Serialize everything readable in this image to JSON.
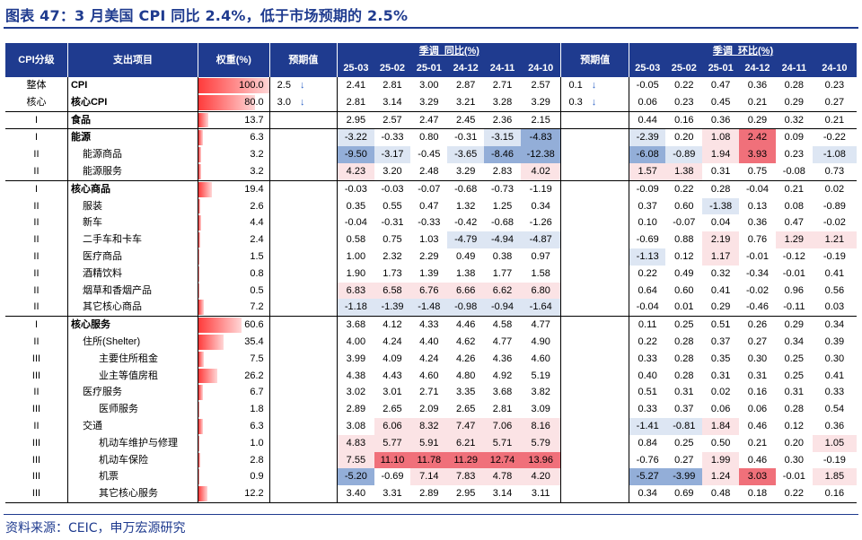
{
  "title": "图表 47：3 月美国 CPI 同比 2.4%，低于市场预期的 2.5%",
  "headers": {
    "level": "CPI分级",
    "item": "支出项目",
    "weight": "权重(%)",
    "forecast": "预期值",
    "yoy_group": "季调_同比(%)",
    "mom_group": "季调_环比(%)",
    "months": [
      "25-03",
      "25-02",
      "25-01",
      "24-12",
      "24-11",
      "24-10"
    ]
  },
  "colors": {
    "header_bg": "#1f3b8f",
    "red_strong": "#f0707a",
    "red_light": "#fbe3e5",
    "blue_strong": "#93aed8",
    "blue_light": "#dde6f3"
  },
  "rows": [
    {
      "level": "整体",
      "item": "CPI",
      "weight": "100.0",
      "fyoy": "2.5",
      "fyoy_arrow": "↓",
      "yoy": [
        "2.41",
        "2.81",
        "3.00",
        "2.87",
        "2.71",
        "2.57"
      ],
      "fmom": "0.1",
      "fmom_arrow": "↓",
      "mom": [
        "-0.05",
        "0.22",
        "0.47",
        "0.36",
        "0.28",
        "0.23"
      ]
    },
    {
      "level": "核心",
      "item": "核心CPI",
      "weight": "80.0",
      "fyoy": "3.0",
      "fyoy_arrow": "↓",
      "yoy": [
        "2.81",
        "3.14",
        "3.29",
        "3.21",
        "3.28",
        "3.29"
      ],
      "fmom": "0.3",
      "fmom_arrow": "↓",
      "mom": [
        "0.06",
        "0.23",
        "0.45",
        "0.21",
        "0.29",
        "0.27"
      ]
    },
    {
      "level": "I",
      "item": "食品",
      "weight": "13.7",
      "yoy": [
        "2.95",
        "2.57",
        "2.47",
        "2.45",
        "2.36",
        "2.15"
      ],
      "mom": [
        "0.44",
        "0.16",
        "0.36",
        "0.29",
        "0.32",
        "0.21"
      ]
    },
    {
      "level": "I",
      "item": "能源",
      "weight": "6.3",
      "yoy": [
        "-3.22",
        "-0.33",
        "0.80",
        "-0.31",
        "-3.15",
        "-4.83"
      ],
      "mom": [
        "-2.39",
        "0.20",
        "1.08",
        "2.42",
        "0.09",
        "-0.22"
      ]
    },
    {
      "level": "II",
      "item": "能源商品",
      "weight": "3.2",
      "yoy": [
        "-9.50",
        "-3.17",
        "-0.45",
        "-3.65",
        "-8.46",
        "-12.38"
      ],
      "mom": [
        "-6.08",
        "-0.89",
        "1.94",
        "3.93",
        "0.23",
        "-1.08"
      ]
    },
    {
      "level": "II",
      "item": "能源服务",
      "weight": "3.2",
      "yoy": [
        "4.23",
        "3.20",
        "2.48",
        "3.29",
        "2.83",
        "4.02"
      ],
      "mom": [
        "1.57",
        "1.38",
        "0.31",
        "0.75",
        "-0.08",
        "0.73"
      ]
    },
    {
      "level": "I",
      "item": "核心商品",
      "weight": "19.4",
      "yoy": [
        "-0.03",
        "-0.03",
        "-0.07",
        "-0.68",
        "-0.73",
        "-1.19"
      ],
      "mom": [
        "-0.09",
        "0.22",
        "0.28",
        "-0.04",
        "0.21",
        "0.02"
      ]
    },
    {
      "level": "II",
      "item": "服装",
      "weight": "2.6",
      "yoy": [
        "0.35",
        "0.55",
        "0.47",
        "1.32",
        "1.25",
        "0.34"
      ],
      "mom": [
        "0.37",
        "0.60",
        "-1.38",
        "0.13",
        "0.08",
        "-0.89"
      ]
    },
    {
      "level": "II",
      "item": "新车",
      "weight": "4.4",
      "yoy": [
        "-0.04",
        "-0.31",
        "-0.33",
        "-0.42",
        "-0.68",
        "-1.26"
      ],
      "mom": [
        "0.10",
        "-0.07",
        "0.04",
        "0.36",
        "0.47",
        "-0.02"
      ]
    },
    {
      "level": "II",
      "item": "二手车和卡车",
      "weight": "2.4",
      "yoy": [
        "0.58",
        "0.75",
        "1.03",
        "-4.79",
        "-4.94",
        "-4.87"
      ],
      "mom": [
        "-0.69",
        "0.88",
        "2.19",
        "0.76",
        "1.29",
        "1.21"
      ]
    },
    {
      "level": "II",
      "item": "医疗商品",
      "weight": "1.5",
      "yoy": [
        "1.00",
        "2.32",
        "2.29",
        "0.49",
        "0.38",
        "0.97"
      ],
      "mom": [
        "-1.13",
        "0.12",
        "1.17",
        "-0.01",
        "-0.12",
        "-0.19"
      ]
    },
    {
      "level": "II",
      "item": "酒精饮料",
      "weight": "0.8",
      "yoy": [
        "1.90",
        "1.73",
        "1.39",
        "1.38",
        "1.77",
        "1.58"
      ],
      "mom": [
        "0.22",
        "0.49",
        "0.32",
        "-0.34",
        "-0.01",
        "0.41"
      ]
    },
    {
      "level": "II",
      "item": "烟草和香烟产品",
      "weight": "0.5",
      "yoy": [
        "6.83",
        "6.58",
        "6.76",
        "6.66",
        "6.62",
        "6.80"
      ],
      "mom": [
        "0.64",
        "0.60",
        "0.41",
        "-0.02",
        "0.96",
        "0.56"
      ]
    },
    {
      "level": "II",
      "item": "其它核心商品",
      "weight": "7.2",
      "yoy": [
        "-1.18",
        "-1.39",
        "-1.48",
        "-0.98",
        "-0.94",
        "-1.64"
      ],
      "mom": [
        "-0.04",
        "0.01",
        "0.29",
        "-0.46",
        "-0.11",
        "0.03"
      ]
    },
    {
      "level": "I",
      "item": "核心服务",
      "weight": "60.6",
      "yoy": [
        "3.68",
        "4.12",
        "4.33",
        "4.46",
        "4.58",
        "4.77"
      ],
      "mom": [
        "0.11",
        "0.25",
        "0.51",
        "0.26",
        "0.29",
        "0.34"
      ]
    },
    {
      "level": "II",
      "item": "住所(Shelter)",
      "weight": "35.4",
      "yoy": [
        "4.00",
        "4.24",
        "4.40",
        "4.62",
        "4.77",
        "4.90"
      ],
      "mom": [
        "0.22",
        "0.28",
        "0.37",
        "0.27",
        "0.34",
        "0.39"
      ]
    },
    {
      "level": "III",
      "item": "主要住所租金",
      "weight": "7.5",
      "yoy": [
        "3.99",
        "4.09",
        "4.24",
        "4.26",
        "4.36",
        "4.60"
      ],
      "mom": [
        "0.33",
        "0.28",
        "0.35",
        "0.30",
        "0.25",
        "0.30"
      ]
    },
    {
      "level": "III",
      "item": "业主等值房租",
      "weight": "26.2",
      "yoy": [
        "4.38",
        "4.43",
        "4.60",
        "4.80",
        "4.92",
        "5.19"
      ],
      "mom": [
        "0.40",
        "0.28",
        "0.31",
        "0.31",
        "0.25",
        "0.41"
      ]
    },
    {
      "level": "II",
      "item": "医疗服务",
      "weight": "6.7",
      "yoy": [
        "3.02",
        "3.01",
        "2.71",
        "3.35",
        "3.68",
        "3.82"
      ],
      "mom": [
        "0.51",
        "0.31",
        "0.02",
        "0.16",
        "0.31",
        "0.33"
      ]
    },
    {
      "level": "III",
      "item": "医师服务",
      "weight": "1.8",
      "yoy": [
        "2.89",
        "2.65",
        "2.09",
        "2.65",
        "2.81",
        "3.09"
      ],
      "mom": [
        "0.33",
        "0.37",
        "0.06",
        "0.06",
        "0.28",
        "0.54"
      ]
    },
    {
      "level": "II",
      "item": "交通",
      "weight": "6.3",
      "yoy": [
        "3.08",
        "6.06",
        "8.32",
        "7.47",
        "7.06",
        "8.16"
      ],
      "mom": [
        "-1.41",
        "-0.81",
        "1.84",
        "0.46",
        "0.12",
        "0.36"
      ]
    },
    {
      "level": "III",
      "item": "机动车维护与修理",
      "weight": "1.0",
      "yoy": [
        "4.83",
        "5.77",
        "5.91",
        "6.21",
        "5.71",
        "5.79"
      ],
      "mom": [
        "0.84",
        "0.25",
        "0.50",
        "0.21",
        "0.20",
        "1.05"
      ]
    },
    {
      "level": "III",
      "item": "机动车保险",
      "weight": "2.8",
      "yoy": [
        "7.55",
        "11.10",
        "11.78",
        "11.29",
        "12.74",
        "13.96"
      ],
      "mom": [
        "-0.76",
        "0.27",
        "1.99",
        "0.46",
        "0.30",
        "-0.19"
      ]
    },
    {
      "level": "III",
      "item": "机票",
      "weight": "0.9",
      "yoy": [
        "-5.20",
        "-0.69",
        "7.14",
        "7.83",
        "4.78",
        "4.20"
      ],
      "mom": [
        "-5.27",
        "-3.99",
        "1.24",
        "3.03",
        "-0.01",
        "1.85"
      ]
    },
    {
      "level": "III",
      "item": "其它核心服务",
      "weight": "12.2",
      "yoy": [
        "3.40",
        "3.31",
        "2.89",
        "2.95",
        "3.14",
        "3.11"
      ],
      "mom": [
        "0.34",
        "0.69",
        "0.48",
        "0.18",
        "0.22",
        "0.16"
      ]
    }
  ],
  "source": "资料来源：CEIC，申万宏源研究"
}
